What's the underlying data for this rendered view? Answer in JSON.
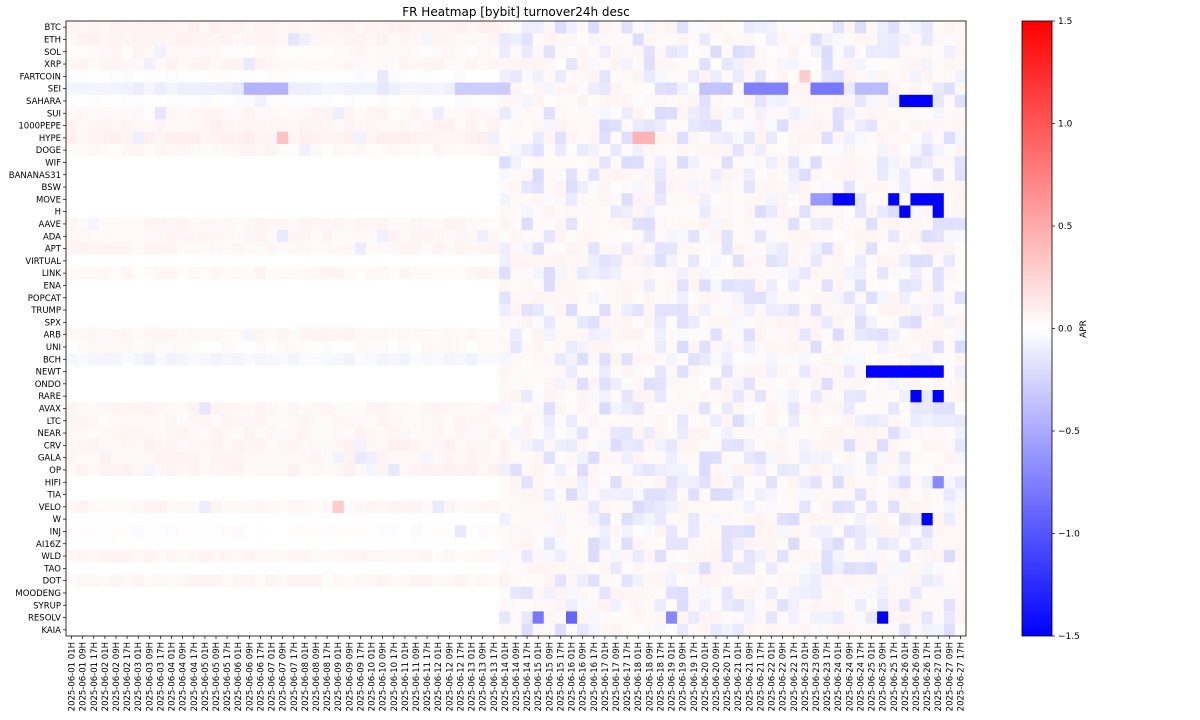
{
  "chart_data": {
    "type": "heatmap",
    "title": "FR Heatmap [bybit] turnover24h desc",
    "colorbar_label": "APR",
    "color_scale": {
      "name": "bwr",
      "min": -1.5,
      "max": 1.5,
      "low_color": "#0000ff",
      "mid_color": "#ffffff",
      "high_color": "#ff0000"
    },
    "colorbar_ticks": [
      "1.5",
      "1.0",
      "0.5",
      "0.0",
      "−0.5",
      "−1.0",
      "−1.5"
    ],
    "colorbar_tick_values": [
      1.5,
      1.0,
      0.5,
      0.0,
      -0.5,
      -1.0,
      -1.5
    ],
    "y_categories": [
      "BTC",
      "ETH",
      "SOL",
      "XRP",
      "FARTCOIN",
      "SEI",
      "SAHARA",
      "SUI",
      "1000PEPE",
      "HYPE",
      "DOGE",
      "WIF",
      "BANANAS31",
      "BSW",
      "MOVE",
      "H",
      "AAVE",
      "ADA",
      "APT",
      "VIRTUAL",
      "LINK",
      "ENA",
      "POPCAT",
      "TRUMP",
      "SPX",
      "ARB",
      "UNI",
      "BCH",
      "NEWT",
      "ONDO",
      "RARE",
      "AVAX",
      "LTC",
      "NEAR",
      "CRV",
      "GALA",
      "OP",
      "HIFI",
      "TIA",
      "VELO",
      "W",
      "INJ",
      "AI16Z",
      "WLD",
      "TAO",
      "DOT",
      "MOODENG",
      "SYRUP",
      "RESOLV",
      "KAIA"
    ],
    "x_start_date": "2025-06-01",
    "x_end_date": "2025-06-27",
    "x_hours": [
      "01H",
      "09H",
      "17H"
    ],
    "baselines": [
      0.07,
      0.06,
      0.04,
      0.05,
      0.0,
      -0.08,
      0.0,
      0.05,
      0.06,
      0.08,
      0.04,
      0.0,
      0.0,
      0.0,
      0.0,
      0.0,
      0.05,
      0.05,
      0.05,
      0.0,
      0.04,
      0.0,
      0.0,
      0.0,
      0.0,
      0.05,
      0.03,
      -0.05,
      0.0,
      0.0,
      0.0,
      0.05,
      0.05,
      0.05,
      0.06,
      0.06,
      0.06,
      0.0,
      0.0,
      0.05,
      0.0,
      0.0,
      0.0,
      0.05,
      0.0,
      0.05,
      0.0,
      0.0,
      0.0,
      0.0
    ],
    "starts": [
      0,
      0,
      0,
      0,
      0,
      0,
      0,
      0,
      0,
      0,
      0,
      39,
      39,
      39,
      39,
      39,
      0,
      0,
      0,
      39,
      0,
      39,
      39,
      39,
      39,
      0,
      0,
      0,
      39,
      39,
      39,
      0,
      0,
      0,
      0,
      0,
      0,
      39,
      39,
      0,
      39,
      0,
      39,
      0,
      39,
      0,
      39,
      39,
      39,
      39
    ],
    "special_cells": [
      {
        "row": "SEI",
        "from": 16,
        "to": 19,
        "value": -0.45
      },
      {
        "row": "SEI",
        "from": 35,
        "to": 39,
        "value": -0.3
      },
      {
        "row": "SEI",
        "from": 57,
        "to": 59,
        "value": -0.35
      },
      {
        "row": "SEI",
        "from": 61,
        "to": 64,
        "value": -0.75
      },
      {
        "row": "SEI",
        "from": 67,
        "to": 69,
        "value": -0.8
      },
      {
        "row": "SEI",
        "from": 71,
        "to": 73,
        "value": -0.4
      },
      {
        "row": "SAHARA",
        "from": 75,
        "to": 77,
        "value": -1.5
      },
      {
        "row": "HYPE",
        "from": 19,
        "to": 19,
        "value": 0.35
      },
      {
        "row": "HYPE",
        "from": 51,
        "to": 52,
        "value": 0.45
      },
      {
        "row": "MOVE",
        "from": 67,
        "to": 68,
        "value": -0.6
      },
      {
        "row": "MOVE",
        "from": 69,
        "to": 70,
        "value": -1.5
      },
      {
        "row": "MOVE",
        "from": 74,
        "to": 74,
        "value": -1.5
      },
      {
        "row": "MOVE",
        "from": 76,
        "to": 78,
        "value": -1.5
      },
      {
        "row": "H",
        "from": 75,
        "to": 75,
        "value": -1.5
      },
      {
        "row": "H",
        "from": 78,
        "to": 78,
        "value": -1.5
      },
      {
        "row": "NEWT",
        "from": 72,
        "to": 78,
        "value": -1.5
      },
      {
        "row": "RARE",
        "from": 76,
        "to": 76,
        "value": -1.5
      },
      {
        "row": "RARE",
        "from": 78,
        "to": 78,
        "value": -1.5
      },
      {
        "row": "W",
        "from": 77,
        "to": 77,
        "value": -1.5
      },
      {
        "row": "RESOLV",
        "from": 73,
        "to": 73,
        "value": -1.5
      },
      {
        "row": "RESOLV",
        "from": 45,
        "to": 45,
        "value": -0.9
      },
      {
        "row": "RESOLV",
        "from": 42,
        "to": 42,
        "value": -0.8
      },
      {
        "row": "RESOLV",
        "from": 54,
        "to": 54,
        "value": -0.7
      },
      {
        "row": "FARTCOIN",
        "from": 66,
        "to": 66,
        "value": 0.3
      },
      {
        "row": "VELO",
        "from": 24,
        "to": 24,
        "value": 0.3
      },
      {
        "row": "HIFI",
        "from": 78,
        "to": 78,
        "value": -0.7
      }
    ]
  }
}
